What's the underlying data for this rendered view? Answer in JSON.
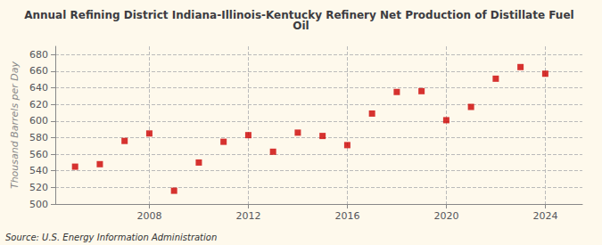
{
  "chart_data": {
    "type": "scatter",
    "title": "Annual Refining District Indiana-Illinois-Kentucky Refinery Net Production of Distillate Fuel Oil",
    "ylabel": "Thousand Barrels per Day",
    "source": "Source: U.S. Energy Information Administration",
    "x": [
      2005,
      2006,
      2007,
      2008,
      2009,
      2010,
      2011,
      2012,
      2013,
      2014,
      2015,
      2016,
      2017,
      2018,
      2019,
      2020,
      2021,
      2022,
      2023,
      2024
    ],
    "values": [
      545,
      548,
      576,
      585,
      516,
      550,
      575,
      583,
      563,
      586,
      582,
      571,
      609,
      635,
      636,
      601,
      617,
      651,
      665,
      657
    ],
    "xlim": [
      2004.2,
      2025.5
    ],
    "ylim": [
      500,
      690
    ],
    "xticks": [
      2008,
      2012,
      2016,
      2020,
      2024
    ],
    "yticks": [
      500,
      520,
      540,
      560,
      580,
      600,
      620,
      640,
      660,
      680
    ],
    "color": "#cc0000",
    "marker": "square",
    "grid": true
  }
}
